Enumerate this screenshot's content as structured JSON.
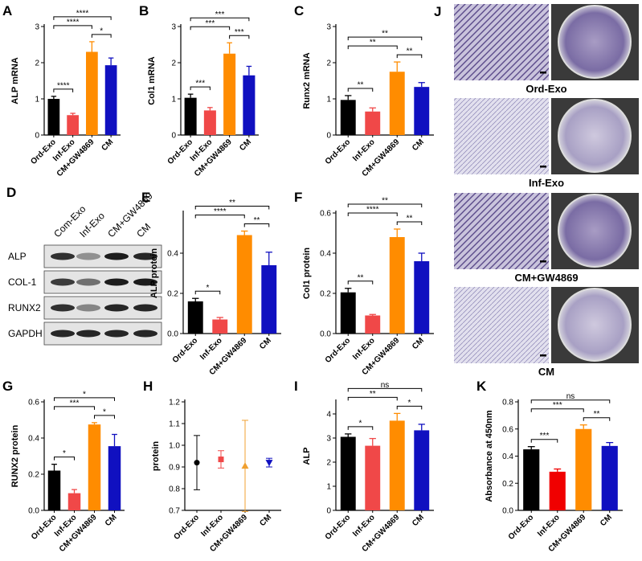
{
  "chart_data": [
    {
      "type": "bar",
      "panel": "A",
      "ylabel": "ALP  mRNA",
      "categories": [
        "Ord-Exo",
        "Inf-Exo",
        "CM+GW4869",
        "CM"
      ],
      "values": [
        1.0,
        0.55,
        2.3,
        1.93
      ],
      "errors": [
        0.07,
        0.05,
        0.28,
        0.2
      ],
      "colors": [
        "#000000",
        "#f04848",
        "#ff8c00",
        "#1010c0"
      ],
      "ylim": [
        0,
        3
      ],
      "yticks": [
        0,
        1,
        2,
        3
      ],
      "brackets": [
        {
          "pair": [
            "Ord-Exo",
            "Inf-Exo"
          ],
          "label": "****"
        },
        {
          "pair": [
            "CM+GW4869",
            "CM"
          ],
          "label": "*"
        },
        {
          "pair": [
            "Ord-Exo",
            "CM+GW4869"
          ],
          "label": "****"
        },
        {
          "pair": [
            "Ord-Exo",
            "CM"
          ],
          "label": "****"
        }
      ]
    },
    {
      "type": "bar",
      "panel": "B",
      "ylabel": "Col1 mRNA",
      "categories": [
        "Ord-Exo",
        "Inf-Exo",
        "CM+GW4869",
        "CM"
      ],
      "values": [
        1.03,
        0.68,
        2.25,
        1.65
      ],
      "errors": [
        0.1,
        0.08,
        0.3,
        0.25
      ],
      "colors": [
        "#000000",
        "#f04848",
        "#ff8c00",
        "#1010c0"
      ],
      "ylim": [
        0,
        3
      ],
      "yticks": [
        0,
        1,
        2,
        3
      ],
      "brackets": [
        {
          "pair": [
            "Ord-Exo",
            "Inf-Exo"
          ],
          "label": "***"
        },
        {
          "pair": [
            "CM+GW4869",
            "CM"
          ],
          "label": "***"
        },
        {
          "pair": [
            "Ord-Exo",
            "CM+GW4869"
          ],
          "label": "***"
        },
        {
          "pair": [
            "Ord-Exo",
            "CM"
          ],
          "label": "***"
        }
      ]
    },
    {
      "type": "bar",
      "panel": "C",
      "ylabel": "Runx2 mRNA",
      "categories": [
        "Ord-Exo",
        "Inf-Exo",
        "CM+GW4869",
        "CM"
      ],
      "values": [
        0.97,
        0.65,
        1.75,
        1.33
      ],
      "errors": [
        0.12,
        0.1,
        0.27,
        0.12
      ],
      "colors": [
        "#000000",
        "#f04848",
        "#ff8c00",
        "#1010c0"
      ],
      "ylim": [
        0,
        3
      ],
      "yticks": [
        0,
        1,
        2,
        3
      ],
      "brackets": [
        {
          "pair": [
            "Ord-Exo",
            "Inf-Exo"
          ],
          "label": "**"
        },
        {
          "pair": [
            "CM+GW4869",
            "CM"
          ],
          "label": "**"
        },
        {
          "pair": [
            "Ord-Exo",
            "CM+GW4869"
          ],
          "label": "**"
        },
        {
          "pair": [
            "Ord-Exo",
            "CM"
          ],
          "label": "**"
        }
      ]
    },
    {
      "type": "bar",
      "panel": "E",
      "ylabel": "ALP protein",
      "categories": [
        "Ord-Exo",
        "Inf-Exo",
        "CM+GW4869",
        "CM"
      ],
      "values": [
        0.16,
        0.07,
        0.49,
        0.34
      ],
      "errors": [
        0.015,
        0.01,
        0.02,
        0.065
      ],
      "colors": [
        "#000000",
        "#f04848",
        "#ff8c00",
        "#1010c0"
      ],
      "ylim": [
        0,
        0.6
      ],
      "yticks": [
        {
          "value": 0,
          "label": "0.0"
        },
        0.2,
        0.4
      ],
      "brackets": [
        {
          "pair": [
            "Ord-Exo",
            "Inf-Exo"
          ],
          "label": "*"
        },
        {
          "pair": [
            "CM+GW4869",
            "CM"
          ],
          "label": "**"
        },
        {
          "pair": [
            "Ord-Exo",
            "CM+GW4869"
          ],
          "label": "****"
        },
        {
          "pair": [
            "Ord-Exo",
            "CM"
          ],
          "label": "**"
        }
      ]
    },
    {
      "type": "bar",
      "panel": "F",
      "ylabel": "Col1 protein",
      "categories": [
        "Ord-Exo",
        "Inf-Exo",
        "CM+GW4869",
        "CM"
      ],
      "values": [
        0.205,
        0.09,
        0.48,
        0.36
      ],
      "errors": [
        0.02,
        0.005,
        0.04,
        0.04
      ],
      "colors": [
        "#000000",
        "#f04848",
        "#ff8c00",
        "#1010c0"
      ],
      "ylim": [
        0,
        0.6
      ],
      "yticks": [
        {
          "value": 0,
          "label": "0.0"
        },
        0.2,
        0.4,
        0.6
      ],
      "brackets": [
        {
          "pair": [
            "Ord-Exo",
            "Inf-Exo"
          ],
          "label": "**"
        },
        {
          "pair": [
            "CM+GW4869",
            "CM"
          ],
          "label": "**"
        },
        {
          "pair": [
            "Ord-Exo",
            "CM+GW4869"
          ],
          "label": "****"
        },
        {
          "pair": [
            "Ord-Exo",
            "CM"
          ],
          "label": "**"
        }
      ]
    },
    {
      "type": "bar",
      "panel": "G",
      "ylabel": "RUNX2 protein",
      "categories": [
        "Ord-Exo",
        "Inf-Exo",
        "CM+GW4869",
        "CM"
      ],
      "values": [
        0.22,
        0.095,
        0.475,
        0.355
      ],
      "errors": [
        0.035,
        0.02,
        0.01,
        0.065
      ],
      "colors": [
        "#000000",
        "#f04848",
        "#ff8c00",
        "#1010c0"
      ],
      "ylim": [
        0,
        0.6
      ],
      "yticks": [
        {
          "value": 0,
          "label": "0.0"
        },
        0.2,
        0.4,
        0.6
      ],
      "brackets": [
        {
          "pair": [
            "Ord-Exo",
            "Inf-Exo"
          ],
          "label": "*"
        },
        {
          "pair": [
            "CM+GW4869",
            "CM"
          ],
          "label": "*"
        },
        {
          "pair": [
            "Ord-Exo",
            "CM+GW4869"
          ],
          "label": "***"
        },
        {
          "pair": [
            "Ord-Exo",
            "CM"
          ],
          "label": "*"
        }
      ]
    },
    {
      "type": "errorbar",
      "panel": "H",
      "ylabel": "protein",
      "categories": [
        "Ord-Exo",
        "Inf-Exo",
        "CM+GW4869",
        "CM"
      ],
      "values": [
        0.92,
        0.935,
        0.905,
        0.92
      ],
      "errors": [
        0.125,
        0.04,
        0.21,
        0.02
      ],
      "colors": [
        "#000000",
        "#f04848",
        "#f0a030",
        "#1010c0"
      ],
      "markers": [
        "circle",
        "square",
        "triangle",
        "triangle-down"
      ],
      "ylim": [
        0.7,
        1.2
      ],
      "yticks": [
        0.7,
        0.8,
        0.9,
        {
          "value": 1.0,
          "label": "1.0"
        },
        1.1,
        1.2
      ]
    },
    {
      "type": "bar",
      "panel": "I",
      "ylabel": "ALP",
      "categories": [
        "Ord-Exo",
        "Inf-Exo",
        "CM+GW4869",
        "CM"
      ],
      "values": [
        3.05,
        2.68,
        3.72,
        3.32
      ],
      "errors": [
        0.12,
        0.3,
        0.3,
        0.25
      ],
      "colors": [
        "#000000",
        "#f04848",
        "#ff8c00",
        "#1010c0"
      ],
      "ylim": [
        0,
        4.5
      ],
      "yticks": [
        0,
        1,
        2,
        3,
        4
      ],
      "brackets": [
        {
          "pair": [
            "Ord-Exo",
            "Inf-Exo"
          ],
          "label": "*"
        },
        {
          "pair": [
            "CM+GW4869",
            "CM"
          ],
          "label": "*"
        },
        {
          "pair": [
            "Ord-Exo",
            "CM+GW4869"
          ],
          "label": "**"
        },
        {
          "pair": [
            "Ord-Exo",
            "CM"
          ],
          "label": "ns"
        }
      ]
    },
    {
      "type": "bar",
      "panel": "K",
      "ylabel": "Absorbance at 450nm",
      "categories": [
        "Ord-Exo",
        "Inf-Exo",
        "CM+GW4869",
        "CM"
      ],
      "values": [
        0.45,
        0.285,
        0.6,
        0.475
      ],
      "errors": [
        0.02,
        0.02,
        0.03,
        0.025
      ],
      "colors": [
        "#000000",
        "#f00000",
        "#ff8c00",
        "#1010c0"
      ],
      "ylim": [
        0,
        0.8
      ],
      "yticks": [
        {
          "value": 0,
          "label": "0.0"
        },
        0.2,
        0.4,
        0.6,
        0.8
      ],
      "brackets": [
        {
          "pair": [
            "Ord-Exo",
            "Inf-Exo"
          ],
          "label": "***"
        },
        {
          "pair": [
            "CM+GW4869",
            "CM"
          ],
          "label": "**"
        },
        {
          "pair": [
            "Ord-Exo",
            "CM+GW4869"
          ],
          "label": "***"
        },
        {
          "pair": [
            "Ord-Exo",
            "CM"
          ],
          "label": "ns"
        }
      ]
    }
  ],
  "blot": {
    "panel": "D",
    "columns": [
      "Com-Exo",
      "Inf-Exo",
      "CM+GW4869",
      "CM"
    ],
    "rows": [
      "ALP",
      "COL-1",
      "RUNX2",
      "GAPDH"
    ]
  },
  "images": {
    "panel": "J",
    "labels": [
      "Ord-Exo",
      "Inf-Exo",
      "CM+GW4869",
      "CM"
    ]
  }
}
